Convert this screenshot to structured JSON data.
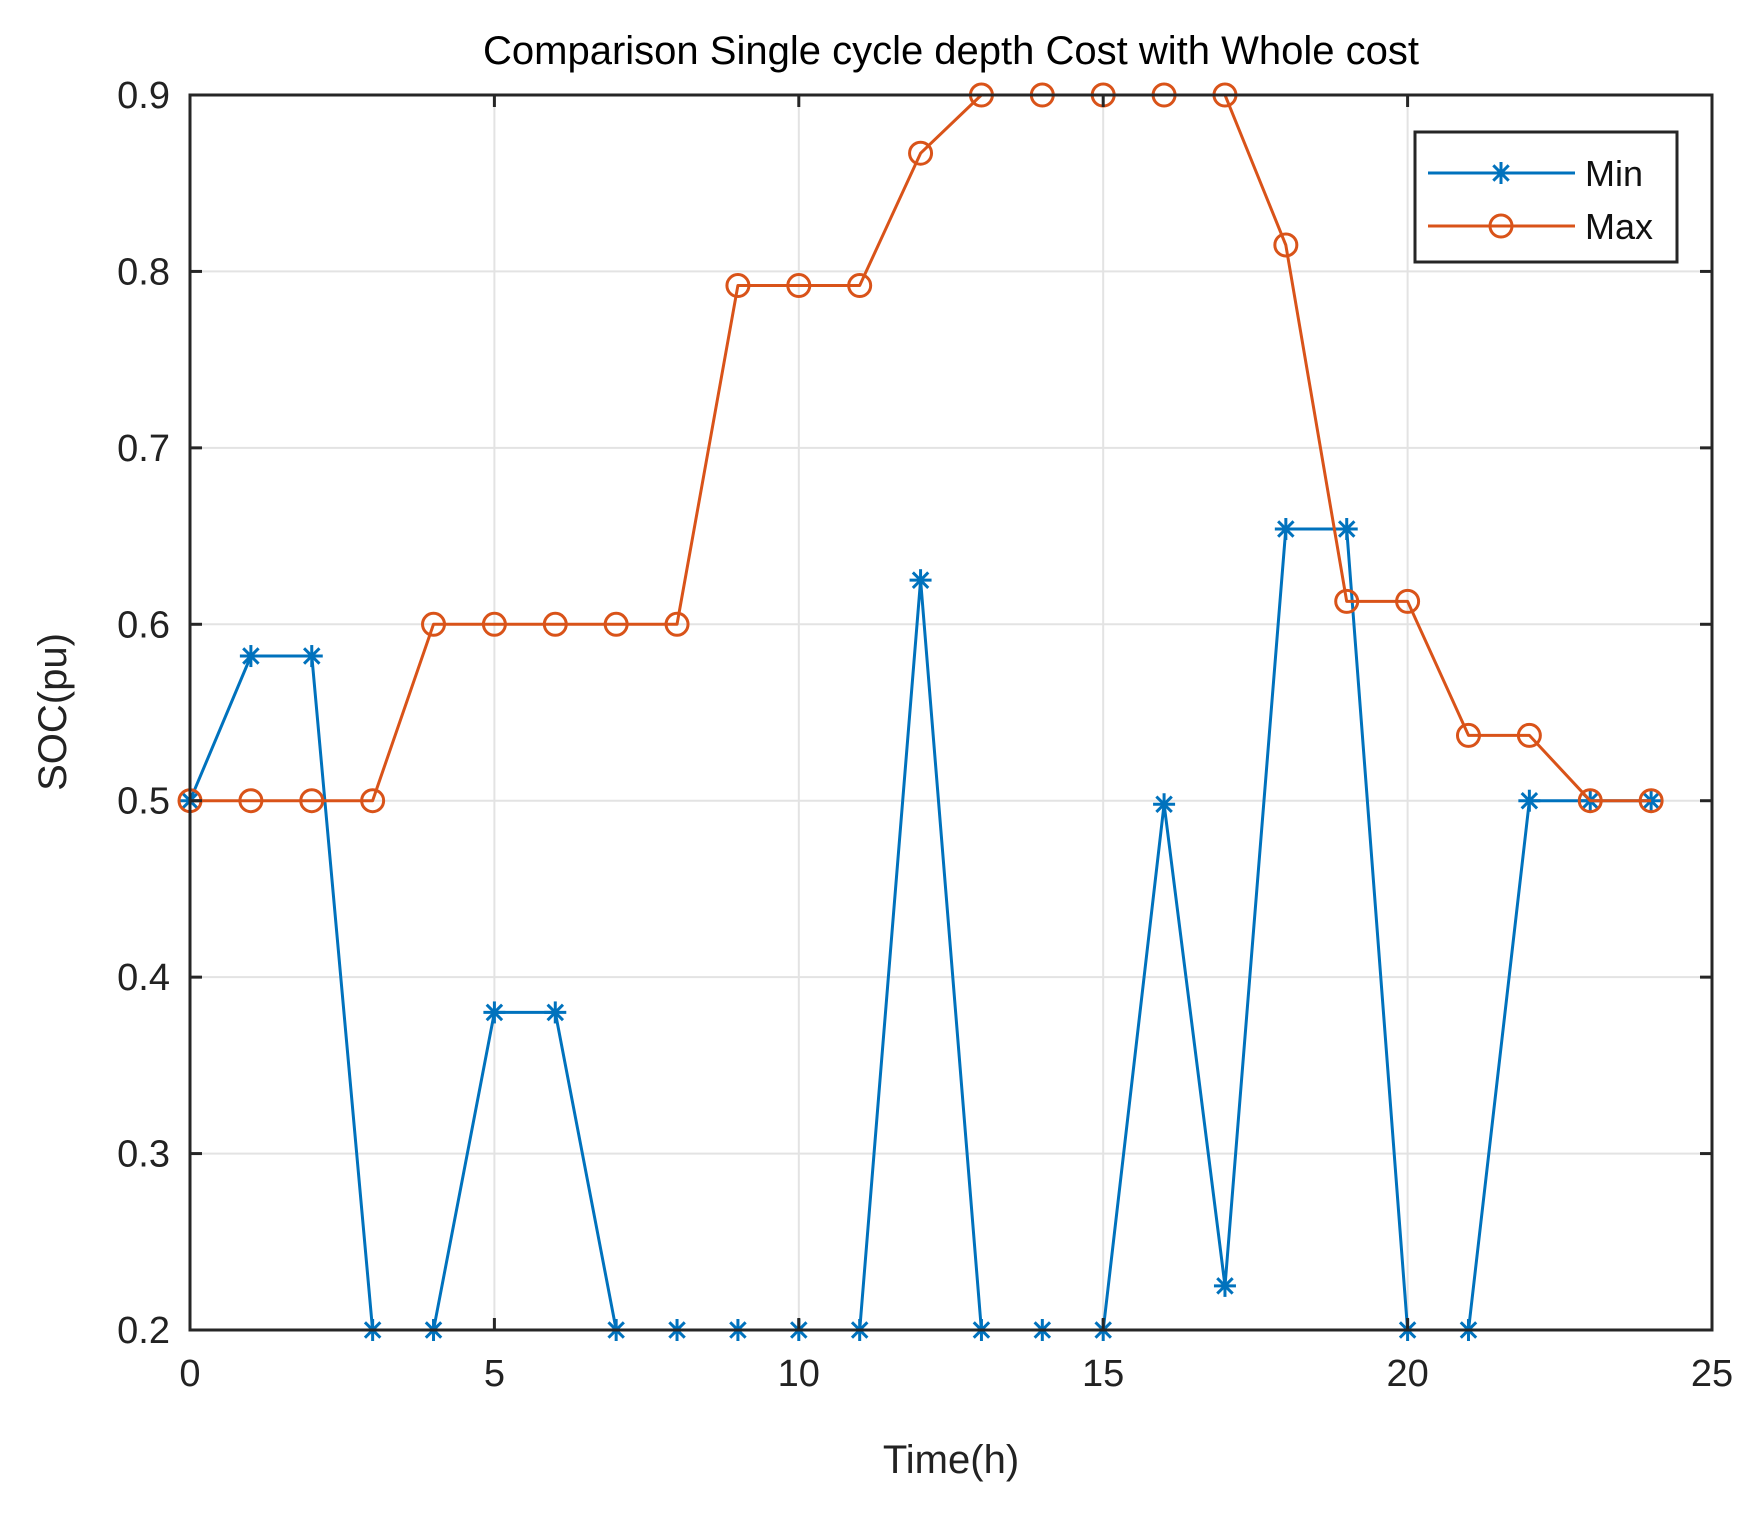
{
  "chart_data": {
    "type": "line",
    "title": "Comparison Single cycle depth Cost with Whole cost",
    "xlabel": "Time(h)",
    "ylabel": "SOC(pu)",
    "xlim": [
      0,
      25
    ],
    "ylim": [
      0.2,
      0.9
    ],
    "xticks": [
      0,
      5,
      10,
      15,
      20,
      25
    ],
    "yticks": [
      0.2,
      0.3,
      0.4,
      0.5,
      0.6,
      0.7,
      0.8,
      0.9
    ],
    "xtick_labels": [
      "0",
      "5",
      "10",
      "15",
      "20",
      "25"
    ],
    "ytick_labels": [
      "0.2",
      "0.3",
      "0.4",
      "0.5",
      "0.6",
      "0.7",
      "0.8",
      "0.9"
    ],
    "grid": true,
    "legend_position": "top-right",
    "x": [
      0,
      1,
      2,
      3,
      4,
      5,
      6,
      7,
      8,
      9,
      10,
      11,
      12,
      13,
      14,
      15,
      16,
      17,
      18,
      19,
      20,
      21,
      22,
      23,
      24
    ],
    "series": [
      {
        "name": "Min",
        "color": "#0072BD",
        "marker": "asterisk",
        "values": [
          0.5,
          0.582,
          0.582,
          0.2,
          0.2,
          0.38,
          0.38,
          0.2,
          0.2,
          0.2,
          0.2,
          0.2,
          0.625,
          0.2,
          0.2,
          0.2,
          0.498,
          0.225,
          0.654,
          0.654,
          0.2,
          0.2,
          0.5,
          0.5,
          0.5
        ]
      },
      {
        "name": "Max",
        "color": "#D95319",
        "marker": "circle",
        "values": [
          0.5,
          0.5,
          0.5,
          0.5,
          0.6,
          0.6,
          0.6,
          0.6,
          0.6,
          0.792,
          0.792,
          0.792,
          0.867,
          0.9,
          0.9,
          0.9,
          0.9,
          0.9,
          0.815,
          0.613,
          0.613,
          0.537,
          0.537,
          0.5,
          0.5
        ]
      }
    ]
  }
}
